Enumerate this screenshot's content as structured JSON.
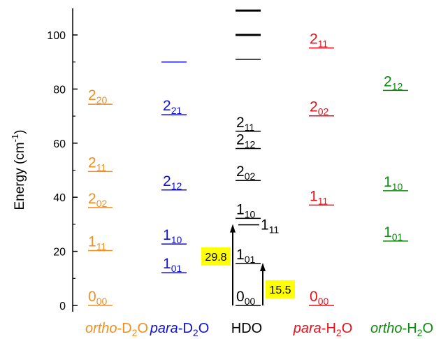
{
  "chart_data": {
    "type": "energy-level-diagram",
    "ylabel": {
      "main": "Energy (cm",
      "sup": "-1",
      "end": ")"
    },
    "y_ticks": [
      "0",
      "20",
      "40",
      "60",
      "80",
      "100"
    ],
    "ylim": [
      -1,
      111
    ],
    "colors": {
      "ortho_d2o": "#F28E1C",
      "para_d2o": "#1010D8",
      "hdo": "#000000",
      "para_h2o": "#E8101C",
      "ortho_h2o": "#0E8A0E",
      "highlight": "#FFFF00"
    },
    "columns": [
      {
        "key": "ortho_d2o",
        "label_pre": "ortho",
        "label_mid": "-D",
        "label_sub": "2",
        "label_post": "O",
        "levels": [
          {
            "energy": 0.0,
            "main": "0",
            "sub": "00"
          },
          {
            "energy": 20.3,
            "main": "1",
            "sub": "11"
          },
          {
            "energy": 36.2,
            "main": "2",
            "sub": "02"
          },
          {
            "energy": 49.5,
            "main": "2",
            "sub": "11"
          },
          {
            "energy": 74.4,
            "main": "2",
            "sub": "20"
          }
        ]
      },
      {
        "key": "para_d2o",
        "label_pre": "para",
        "label_mid": "-D",
        "label_sub": "2",
        "label_post": "O",
        "levels": [
          {
            "energy": 12.1,
            "main": "1",
            "sub": "01"
          },
          {
            "energy": 22.7,
            "main": "1",
            "sub": "10"
          },
          {
            "energy": 42.7,
            "main": "2",
            "sub": "12"
          },
          {
            "energy": 70.5,
            "main": "2",
            "sub": "21"
          },
          {
            "energy": 90.0,
            "main": "",
            "sub": ""
          }
        ]
      },
      {
        "key": "hdo",
        "label_pre": "",
        "label_mid": "HDO",
        "label_sub": "",
        "label_post": "",
        "levels": [
          {
            "energy": 0.0,
            "main": "0",
            "sub": "00"
          },
          {
            "energy": 15.5,
            "main": "1",
            "sub": "01"
          },
          {
            "energy": 29.8,
            "main": "",
            "sub": ""
          },
          {
            "energy": 32.2,
            "main": "1",
            "sub": "10"
          },
          {
            "energy": 46.2,
            "main": "2",
            "sub": "02"
          },
          {
            "energy": 58.0,
            "main": "2",
            "sub": "12"
          },
          {
            "energy": 64.4,
            "main": "2",
            "sub": "11"
          },
          {
            "energy": 91.0,
            "main": "",
            "sub": ""
          },
          {
            "energy": 100.0,
            "main": "",
            "sub": ""
          },
          {
            "energy": 109.0,
            "main": "",
            "sub": ""
          }
        ],
        "side_label": {
          "energy": 29.8,
          "main": "1",
          "sub": "11"
        }
      },
      {
        "key": "para_h2o",
        "label_pre": "para",
        "label_mid": "-H",
        "label_sub": "2",
        "label_post": "O",
        "levels": [
          {
            "energy": 0.0,
            "main": "0",
            "sub": "00"
          },
          {
            "energy": 37.1,
            "main": "1",
            "sub": "11"
          },
          {
            "energy": 70.1,
            "main": "2",
            "sub": "02"
          },
          {
            "energy": 95.2,
            "main": "2",
            "sub": "11"
          }
        ]
      },
      {
        "key": "ortho_h2o",
        "label_pre": "ortho",
        "label_mid": "-H",
        "label_sub": "2",
        "label_post": "O",
        "levels": [
          {
            "energy": 23.8,
            "main": "1",
            "sub": "01"
          },
          {
            "energy": 42.4,
            "main": "1",
            "sub": "10"
          },
          {
            "energy": 79.5,
            "main": "2",
            "sub": "12"
          }
        ]
      }
    ],
    "transitions": [
      {
        "from": 0.0,
        "to": 29.8,
        "label": "29.8"
      },
      {
        "from": 0.0,
        "to": 15.5,
        "label": "15.5"
      }
    ]
  }
}
